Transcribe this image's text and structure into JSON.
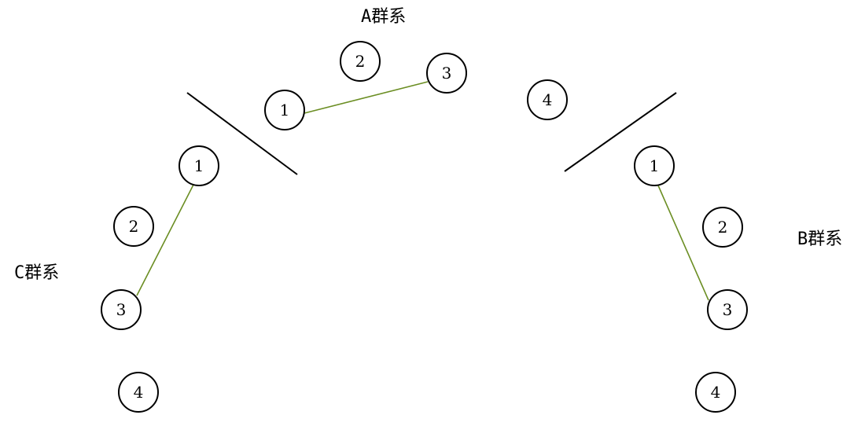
{
  "groups": {
    "a": {
      "label": "A群系",
      "nodes": [
        "1",
        "2",
        "3",
        "4"
      ]
    },
    "b": {
      "label": "B群系",
      "nodes": [
        "1",
        "2",
        "3",
        "4"
      ]
    },
    "c": {
      "label": "C群系",
      "nodes": [
        "1",
        "2",
        "3",
        "4"
      ]
    }
  },
  "connections": [
    {
      "group": "a",
      "from": "1",
      "to": "3"
    },
    {
      "group": "b",
      "from": "1",
      "to": "3"
    },
    {
      "group": "c",
      "from": "1",
      "to": "3"
    }
  ],
  "colors": {
    "connection": "#6b8e23",
    "stroke": "#000000"
  }
}
